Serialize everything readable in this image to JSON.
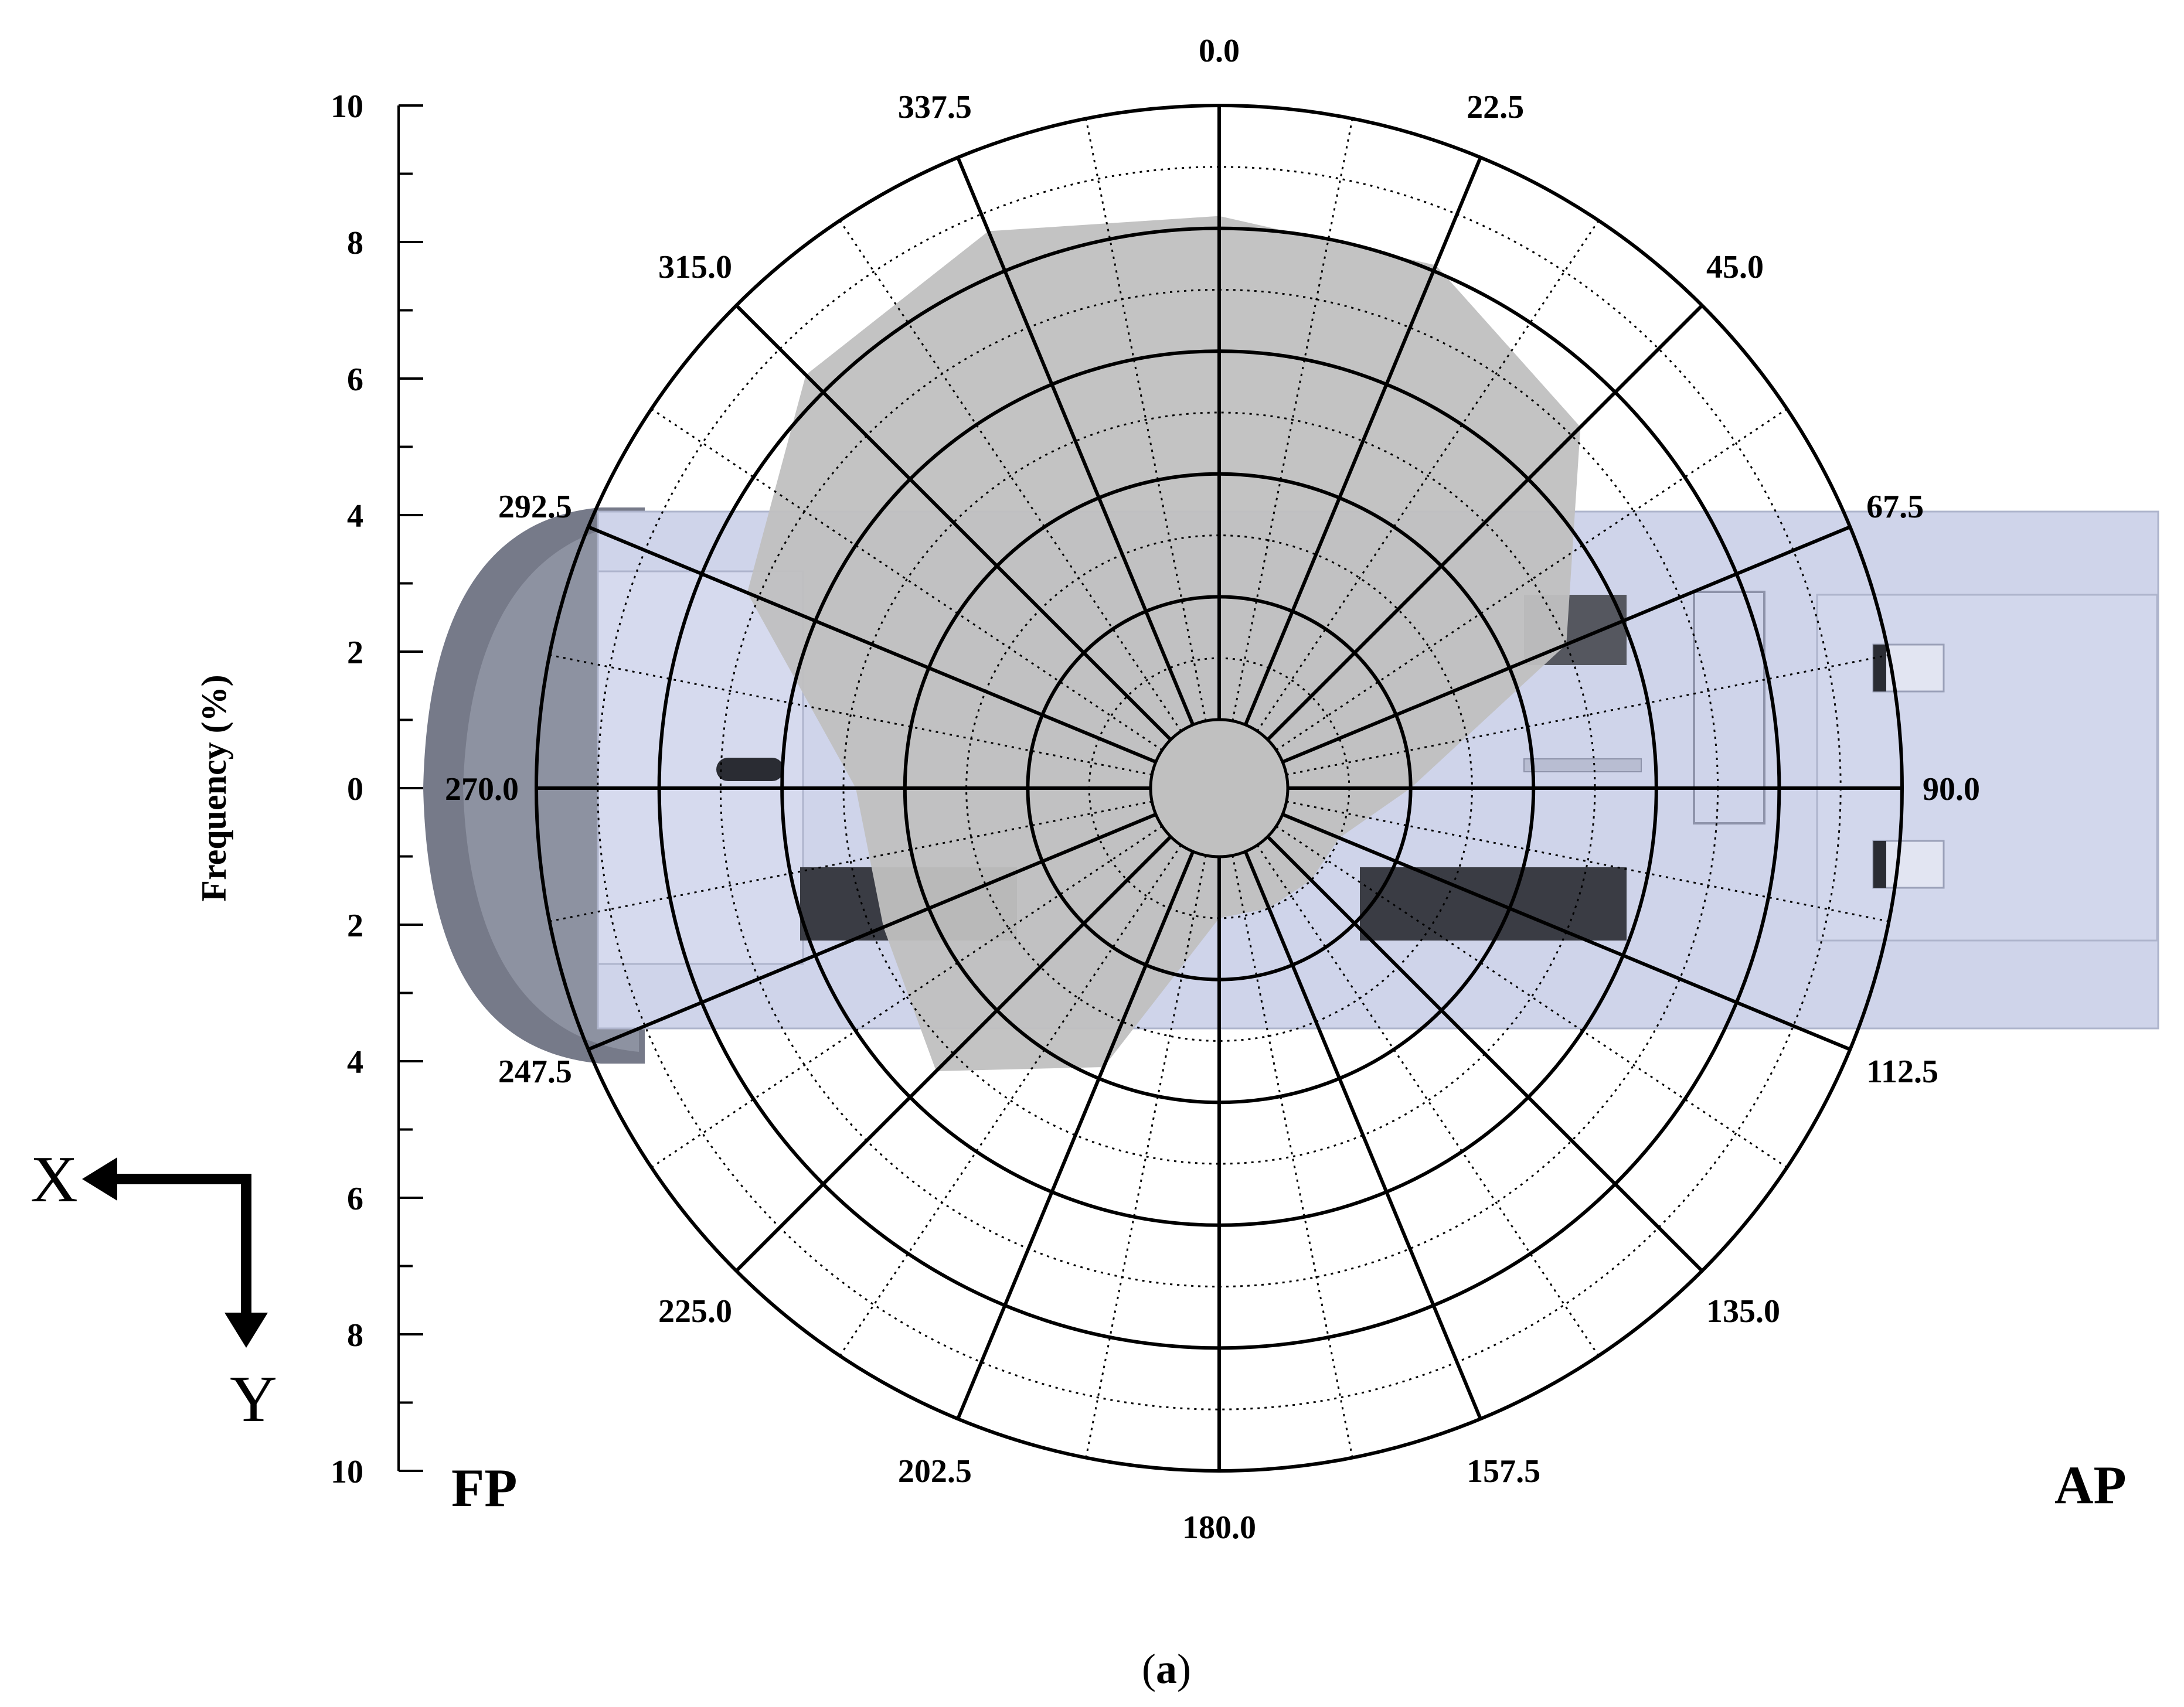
{
  "chart_data": {
    "type": "radar",
    "directions": [
      "0.0",
      "22.5",
      "45.0",
      "67.5",
      "90.0",
      "112.5",
      "135.0",
      "157.5",
      "180.0",
      "202.5",
      "225.0",
      "247.5",
      "270.0",
      "292.5",
      "315.0",
      "337.5"
    ],
    "series": [
      {
        "values": [
          8.2,
          8.1,
          7.2,
          5.0,
          2.0,
          1.0,
          1.0,
          1.0,
          1.0,
          3.8,
          5.4,
          4.8,
          4.8,
          7.2,
          8.4,
          8.7
        ]
      }
    ],
    "radial_range": [
      0,
      10
    ],
    "radial_ticks": [
      2,
      4,
      6,
      8,
      10
    ],
    "ylabel": "Frequency (%)",
    "y_ticks_upper": [
      "10",
      "8",
      "6",
      "4",
      "2",
      "0"
    ],
    "y_ticks_lower": [
      "2",
      "4",
      "6",
      "8",
      "10"
    ],
    "grid": true,
    "fill_color": "#c0c0c0"
  },
  "labels": {
    "left_end": "FP",
    "right_end": "AP",
    "axis_x": "X",
    "axis_y": "Y",
    "caption_open": "(",
    "caption_letter": "a",
    "caption_close": ")"
  },
  "colors": {
    "vehicle_body": "#cfd4ea",
    "vehicle_nose": "#6b6f7e",
    "dark_panels": "#3a3c44"
  }
}
